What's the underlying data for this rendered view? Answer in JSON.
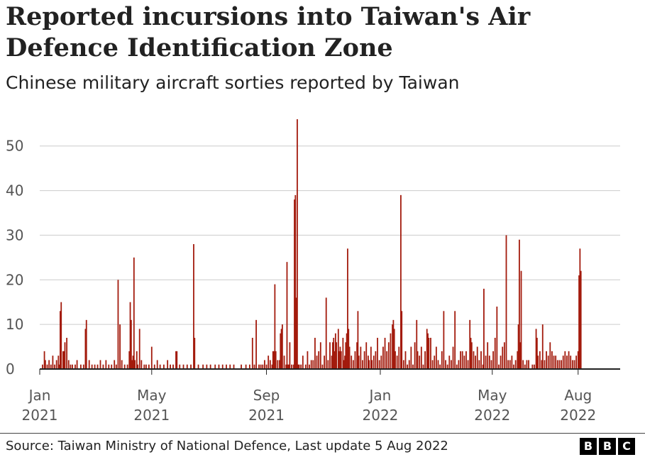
{
  "header": {
    "title": "Reported incursions into Taiwan's Air Defence Identification Zone",
    "subtitle": "Chinese military aircraft sorties reported by Taiwan"
  },
  "footer": {
    "source": "Source: Taiwan Ministry of National Defence, Last update 5 Aug 2022",
    "logo_letters": [
      "B",
      "B",
      "C"
    ]
  },
  "colors": {
    "bar": "#a31b0d",
    "grid": "#cccccc",
    "axis": "#222222"
  },
  "chart_data": {
    "type": "bar",
    "x_axis": "date",
    "x_start": "2021-01-01",
    "x_end": "2022-08-05",
    "ylim": [
      0,
      56
    ],
    "y_ticks": [
      0,
      10,
      20,
      30,
      40,
      50
    ],
    "x_ticks": [
      {
        "date": "2021-01-01",
        "line1": "Jan",
        "line2": "2021"
      },
      {
        "date": "2021-05-01",
        "line1": "May",
        "line2": "2021"
      },
      {
        "date": "2021-09-01",
        "line1": "Sep",
        "line2": "2021"
      },
      {
        "date": "2022-01-01",
        "line1": "Jan",
        "line2": "2022"
      },
      {
        "date": "2022-05-01",
        "line1": "May",
        "line2": "2022"
      },
      {
        "date": "2022-08-01",
        "line1": "Aug",
        "line2": "2022"
      }
    ],
    "grid": true,
    "values": [
      [
        "2021-01-04",
        1
      ],
      [
        "2021-01-06",
        4
      ],
      [
        "2021-01-07",
        2
      ],
      [
        "2021-01-09",
        1
      ],
      [
        "2021-01-11",
        2
      ],
      [
        "2021-01-13",
        1
      ],
      [
        "2021-01-15",
        3
      ],
      [
        "2021-01-17",
        1
      ],
      [
        "2021-01-19",
        2
      ],
      [
        "2021-01-21",
        3
      ],
      [
        "2021-01-22",
        1
      ],
      [
        "2021-01-23",
        13
      ],
      [
        "2021-01-24",
        15
      ],
      [
        "2021-01-26",
        4
      ],
      [
        "2021-01-27",
        4
      ],
      [
        "2021-01-28",
        6
      ],
      [
        "2021-01-30",
        7
      ],
      [
        "2021-02-01",
        2
      ],
      [
        "2021-02-03",
        1
      ],
      [
        "2021-02-05",
        1
      ],
      [
        "2021-02-08",
        1
      ],
      [
        "2021-02-10",
        2
      ],
      [
        "2021-02-14",
        1
      ],
      [
        "2021-02-17",
        1
      ],
      [
        "2021-02-19",
        9
      ],
      [
        "2021-02-20",
        11
      ],
      [
        "2021-02-23",
        2
      ],
      [
        "2021-02-26",
        1
      ],
      [
        "2021-03-01",
        1
      ],
      [
        "2021-03-04",
        1
      ],
      [
        "2021-03-07",
        2
      ],
      [
        "2021-03-10",
        1
      ],
      [
        "2021-03-13",
        2
      ],
      [
        "2021-03-16",
        1
      ],
      [
        "2021-03-19",
        1
      ],
      [
        "2021-03-22",
        2
      ],
      [
        "2021-03-24",
        1
      ],
      [
        "2021-03-26",
        20
      ],
      [
        "2021-03-28",
        10
      ],
      [
        "2021-03-30",
        2
      ],
      [
        "2021-04-02",
        1
      ],
      [
        "2021-04-05",
        1
      ],
      [
        "2021-04-07",
        4
      ],
      [
        "2021-04-08",
        15
      ],
      [
        "2021-04-09",
        11
      ],
      [
        "2021-04-10",
        2
      ],
      [
        "2021-04-11",
        3
      ],
      [
        "2021-04-12",
        25
      ],
      [
        "2021-04-13",
        2
      ],
      [
        "2021-04-15",
        4
      ],
      [
        "2021-04-16",
        1
      ],
      [
        "2021-04-18",
        9
      ],
      [
        "2021-04-20",
        2
      ],
      [
        "2021-04-23",
        1
      ],
      [
        "2021-04-25",
        1
      ],
      [
        "2021-04-28",
        1
      ],
      [
        "2021-05-01",
        5
      ],
      [
        "2021-05-04",
        1
      ],
      [
        "2021-05-07",
        2
      ],
      [
        "2021-05-10",
        1
      ],
      [
        "2021-05-14",
        1
      ],
      [
        "2021-05-18",
        2
      ],
      [
        "2021-05-21",
        1
      ],
      [
        "2021-05-24",
        1
      ],
      [
        "2021-05-27",
        4
      ],
      [
        "2021-05-28",
        4
      ],
      [
        "2021-05-31",
        1
      ],
      [
        "2021-06-04",
        1
      ],
      [
        "2021-06-08",
        1
      ],
      [
        "2021-06-12",
        1
      ],
      [
        "2021-06-15",
        28
      ],
      [
        "2021-06-16",
        7
      ],
      [
        "2021-06-20",
        1
      ],
      [
        "2021-06-25",
        1
      ],
      [
        "2021-06-29",
        1
      ],
      [
        "2021-07-03",
        1
      ],
      [
        "2021-07-08",
        1
      ],
      [
        "2021-07-12",
        1
      ],
      [
        "2021-07-16",
        1
      ],
      [
        "2021-07-20",
        1
      ],
      [
        "2021-07-24",
        1
      ],
      [
        "2021-07-28",
        1
      ],
      [
        "2021-08-05",
        1
      ],
      [
        "2021-08-10",
        1
      ],
      [
        "2021-08-14",
        1
      ],
      [
        "2021-08-17",
        7
      ],
      [
        "2021-08-19",
        1
      ],
      [
        "2021-08-21",
        11
      ],
      [
        "2021-08-24",
        1
      ],
      [
        "2021-08-26",
        1
      ],
      [
        "2021-08-28",
        1
      ],
      [
        "2021-08-30",
        2
      ],
      [
        "2021-09-01",
        1
      ],
      [
        "2021-09-03",
        3
      ],
      [
        "2021-09-05",
        2
      ],
      [
        "2021-09-07",
        1
      ],
      [
        "2021-09-08",
        4
      ],
      [
        "2021-09-09",
        4
      ],
      [
        "2021-09-10",
        19
      ],
      [
        "2021-09-11",
        4
      ],
      [
        "2021-09-13",
        2
      ],
      [
        "2021-09-15",
        2
      ],
      [
        "2021-09-16",
        8
      ],
      [
        "2021-09-17",
        9
      ],
      [
        "2021-09-18",
        10
      ],
      [
        "2021-09-20",
        3
      ],
      [
        "2021-09-22",
        1
      ],
      [
        "2021-09-23",
        24
      ],
      [
        "2021-09-24",
        1
      ],
      [
        "2021-09-25",
        1
      ],
      [
        "2021-09-26",
        6
      ],
      [
        "2021-09-28",
        1
      ],
      [
        "2021-09-30",
        1
      ],
      [
        "2021-10-01",
        38
      ],
      [
        "2021-10-02",
        39
      ],
      [
        "2021-10-03",
        16
      ],
      [
        "2021-10-04",
        56
      ],
      [
        "2021-10-05",
        1
      ],
      [
        "2021-10-06",
        1
      ],
      [
        "2021-10-08",
        1
      ],
      [
        "2021-10-10",
        3
      ],
      [
        "2021-10-13",
        1
      ],
      [
        "2021-10-15",
        4
      ],
      [
        "2021-10-17",
        1
      ],
      [
        "2021-10-19",
        2
      ],
      [
        "2021-10-21",
        2
      ],
      [
        "2021-10-23",
        7
      ],
      [
        "2021-10-25",
        3
      ],
      [
        "2021-10-27",
        4
      ],
      [
        "2021-10-29",
        6
      ],
      [
        "2021-10-31",
        1
      ],
      [
        "2021-11-02",
        3
      ],
      [
        "2021-11-04",
        16
      ],
      [
        "2021-11-06",
        2
      ],
      [
        "2021-11-08",
        6
      ],
      [
        "2021-11-10",
        3
      ],
      [
        "2021-11-11",
        6
      ],
      [
        "2021-11-12",
        7
      ],
      [
        "2021-11-13",
        4
      ],
      [
        "2021-11-14",
        8
      ],
      [
        "2021-11-15",
        6
      ],
      [
        "2021-11-17",
        9
      ],
      [
        "2021-11-18",
        4
      ],
      [
        "2021-11-19",
        5
      ],
      [
        "2021-11-20",
        4
      ],
      [
        "2021-11-22",
        7
      ],
      [
        "2021-11-23",
        2
      ],
      [
        "2021-11-24",
        3
      ],
      [
        "2021-11-25",
        6
      ],
      [
        "2021-11-26",
        8
      ],
      [
        "2021-11-27",
        27
      ],
      [
        "2021-11-28",
        9
      ],
      [
        "2021-11-29",
        5
      ],
      [
        "2021-12-01",
        3
      ],
      [
        "2021-12-03",
        2
      ],
      [
        "2021-12-05",
        4
      ],
      [
        "2021-12-07",
        6
      ],
      [
        "2021-12-08",
        13
      ],
      [
        "2021-12-09",
        3
      ],
      [
        "2021-12-11",
        5
      ],
      [
        "2021-12-13",
        2
      ],
      [
        "2021-12-15",
        4
      ],
      [
        "2021-12-17",
        6
      ],
      [
        "2021-12-19",
        3
      ],
      [
        "2021-12-20",
        2
      ],
      [
        "2021-12-22",
        5
      ],
      [
        "2021-12-23",
        2
      ],
      [
        "2021-12-25",
        3
      ],
      [
        "2021-12-27",
        4
      ],
      [
        "2021-12-29",
        7
      ],
      [
        "2021-12-31",
        2
      ],
      [
        "2022-01-02",
        3
      ],
      [
        "2022-01-04",
        5
      ],
      [
        "2022-01-06",
        7
      ],
      [
        "2022-01-08",
        4
      ],
      [
        "2022-01-10",
        6
      ],
      [
        "2022-01-12",
        8
      ],
      [
        "2022-01-14",
        10
      ],
      [
        "2022-01-15",
        11
      ],
      [
        "2022-01-16",
        9
      ],
      [
        "2022-01-17",
        4
      ],
      [
        "2022-01-19",
        3
      ],
      [
        "2022-01-21",
        5
      ],
      [
        "2022-01-23",
        39
      ],
      [
        "2022-01-24",
        13
      ],
      [
        "2022-01-26",
        2
      ],
      [
        "2022-01-28",
        4
      ],
      [
        "2022-01-30",
        1
      ],
      [
        "2022-02-01",
        2
      ],
      [
        "2022-02-03",
        5
      ],
      [
        "2022-02-05",
        1
      ],
      [
        "2022-02-07",
        6
      ],
      [
        "2022-02-09",
        11
      ],
      [
        "2022-02-10",
        4
      ],
      [
        "2022-02-12",
        3
      ],
      [
        "2022-02-14",
        5
      ],
      [
        "2022-02-16",
        1
      ],
      [
        "2022-02-18",
        4
      ],
      [
        "2022-02-20",
        9
      ],
      [
        "2022-02-21",
        8
      ],
      [
        "2022-02-22",
        7
      ],
      [
        "2022-02-24",
        7
      ],
      [
        "2022-02-26",
        2
      ],
      [
        "2022-02-28",
        3
      ],
      [
        "2022-03-02",
        5
      ],
      [
        "2022-03-04",
        2
      ],
      [
        "2022-03-06",
        1
      ],
      [
        "2022-03-08",
        4
      ],
      [
        "2022-03-10",
        13
      ],
      [
        "2022-03-12",
        2
      ],
      [
        "2022-03-14",
        1
      ],
      [
        "2022-03-16",
        3
      ],
      [
        "2022-03-18",
        2
      ],
      [
        "2022-03-20",
        5
      ],
      [
        "2022-03-22",
        13
      ],
      [
        "2022-03-24",
        1
      ],
      [
        "2022-03-26",
        2
      ],
      [
        "2022-03-28",
        4
      ],
      [
        "2022-03-30",
        4
      ],
      [
        "2022-04-01",
        3
      ],
      [
        "2022-04-03",
        4
      ],
      [
        "2022-04-05",
        2
      ],
      [
        "2022-04-07",
        11
      ],
      [
        "2022-04-08",
        7
      ],
      [
        "2022-04-09",
        6
      ],
      [
        "2022-04-11",
        4
      ],
      [
        "2022-04-13",
        3
      ],
      [
        "2022-04-15",
        5
      ],
      [
        "2022-04-17",
        2
      ],
      [
        "2022-04-19",
        4
      ],
      [
        "2022-04-21",
        1
      ],
      [
        "2022-04-22",
        18
      ],
      [
        "2022-04-24",
        3
      ],
      [
        "2022-04-26",
        6
      ],
      [
        "2022-04-28",
        3
      ],
      [
        "2022-04-30",
        2
      ],
      [
        "2022-05-02",
        4
      ],
      [
        "2022-05-04",
        7
      ],
      [
        "2022-05-06",
        14
      ],
      [
        "2022-05-08",
        1
      ],
      [
        "2022-05-10",
        3
      ],
      [
        "2022-05-12",
        5
      ],
      [
        "2022-05-14",
        6
      ],
      [
        "2022-05-16",
        30
      ],
      [
        "2022-05-18",
        2
      ],
      [
        "2022-05-20",
        2
      ],
      [
        "2022-05-22",
        3
      ],
      [
        "2022-05-24",
        1
      ],
      [
        "2022-05-26",
        2
      ],
      [
        "2022-05-28",
        4
      ],
      [
        "2022-05-29",
        10
      ],
      [
        "2022-05-30",
        29
      ],
      [
        "2022-05-31",
        6
      ],
      [
        "2022-06-01",
        22
      ],
      [
        "2022-06-03",
        2
      ],
      [
        "2022-06-05",
        1
      ],
      [
        "2022-06-07",
        2
      ],
      [
        "2022-06-09",
        2
      ],
      [
        "2022-06-13",
        1
      ],
      [
        "2022-06-15",
        1
      ],
      [
        "2022-06-17",
        9
      ],
      [
        "2022-06-18",
        7
      ],
      [
        "2022-06-19",
        3
      ],
      [
        "2022-06-21",
        4
      ],
      [
        "2022-06-23",
        2
      ],
      [
        "2022-06-24",
        10
      ],
      [
        "2022-06-26",
        2
      ],
      [
        "2022-06-28",
        4
      ],
      [
        "2022-06-30",
        3
      ],
      [
        "2022-07-02",
        6
      ],
      [
        "2022-07-04",
        4
      ],
      [
        "2022-07-06",
        3
      ],
      [
        "2022-07-08",
        3
      ],
      [
        "2022-07-10",
        2
      ],
      [
        "2022-07-12",
        2
      ],
      [
        "2022-07-14",
        2
      ],
      [
        "2022-07-16",
        3
      ],
      [
        "2022-07-18",
        4
      ],
      [
        "2022-07-20",
        3
      ],
      [
        "2022-07-22",
        4
      ],
      [
        "2022-07-24",
        3
      ],
      [
        "2022-07-26",
        2
      ],
      [
        "2022-07-28",
        2
      ],
      [
        "2022-07-30",
        3
      ],
      [
        "2022-08-01",
        4
      ],
      [
        "2022-08-02",
        21
      ],
      [
        "2022-08-03",
        27
      ],
      [
        "2022-08-04",
        22
      ]
    ]
  }
}
